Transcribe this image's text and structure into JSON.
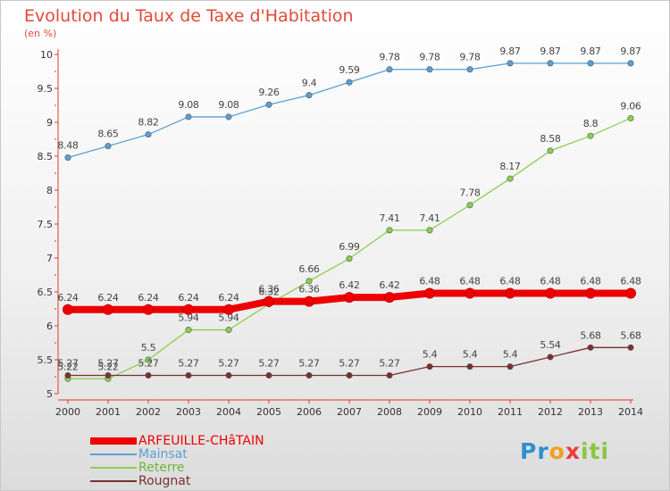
{
  "title": "Evolution du Taux de Taxe d'Habitation",
  "subtitle": "(en %)",
  "logo": {
    "p1": "Pr",
    "p2": "o",
    "p3": "x",
    "p4": "iti"
  },
  "chart_data": {
    "type": "line",
    "x": [
      2000,
      2001,
      2002,
      2003,
      2004,
      2005,
      2006,
      2007,
      2008,
      2009,
      2010,
      2011,
      2012,
      2013,
      2014
    ],
    "ylim": [
      5,
      10
    ],
    "yticks": [
      "5",
      "5.5",
      "6",
      "6.5",
      "7",
      "7.5",
      "8",
      "8.5",
      "9",
      "9.5",
      "10"
    ],
    "grid": false,
    "legend_position": "bottom-left",
    "series": [
      {
        "name": "ARFEUILLE-CHâTAIN",
        "color": "#ee0000",
        "values": [
          6.24,
          6.24,
          6.24,
          6.24,
          6.24,
          6.36,
          6.36,
          6.42,
          6.42,
          6.48,
          6.48,
          6.48,
          6.48,
          6.48,
          6.48
        ],
        "labels": [
          "6.24",
          "6.24",
          "6.24",
          "6.24",
          "6.24",
          "6.36",
          "6.36",
          "6.42",
          "6.42",
          "6.48",
          "6.48",
          "6.48",
          "6.48",
          "6.48",
          "6.48"
        ]
      },
      {
        "name": "Mainsat",
        "color": "#5aa0d2",
        "values": [
          8.48,
          8.65,
          8.82,
          9.08,
          9.08,
          9.26,
          9.4,
          9.59,
          9.78,
          9.78,
          9.78,
          9.87,
          9.87,
          9.87,
          9.87
        ],
        "labels": [
          "8.48",
          "8.65",
          "8.82",
          "9.08",
          "9.08",
          "9.26",
          "9.4",
          "9.59",
          "9.78",
          "9.78",
          "9.78",
          "9.87",
          "9.87",
          "9.87",
          "9.87"
        ]
      },
      {
        "name": "Reterre",
        "color": "#8ccf4f",
        "values": [
          5.22,
          5.22,
          5.5,
          5.94,
          5.94,
          6.32,
          6.66,
          6.99,
          7.41,
          7.41,
          7.78,
          8.17,
          8.58,
          8.8,
          9.06
        ],
        "labels": [
          "5.22",
          "5.22",
          "5.5",
          "5.94",
          "5.94",
          "6.32",
          "6.66",
          "6.99",
          "7.41",
          "7.41",
          "7.78",
          "8.17",
          "8.58",
          "8.8",
          "9.06"
        ]
      },
      {
        "name": "Rougnat",
        "color": "#7a3030",
        "values": [
          5.27,
          5.27,
          5.27,
          5.27,
          5.27,
          5.27,
          5.27,
          5.27,
          5.27,
          5.4,
          5.4,
          5.4,
          5.54,
          5.68,
          5.68
        ],
        "labels": [
          "5.27",
          "5.27",
          "5.27",
          "5.27",
          "5.27",
          "5.27",
          "5.27",
          "5.27",
          "5.27",
          "5.4",
          "5.4",
          "5.4",
          "5.54",
          "5.68",
          "5.68"
        ]
      }
    ]
  }
}
